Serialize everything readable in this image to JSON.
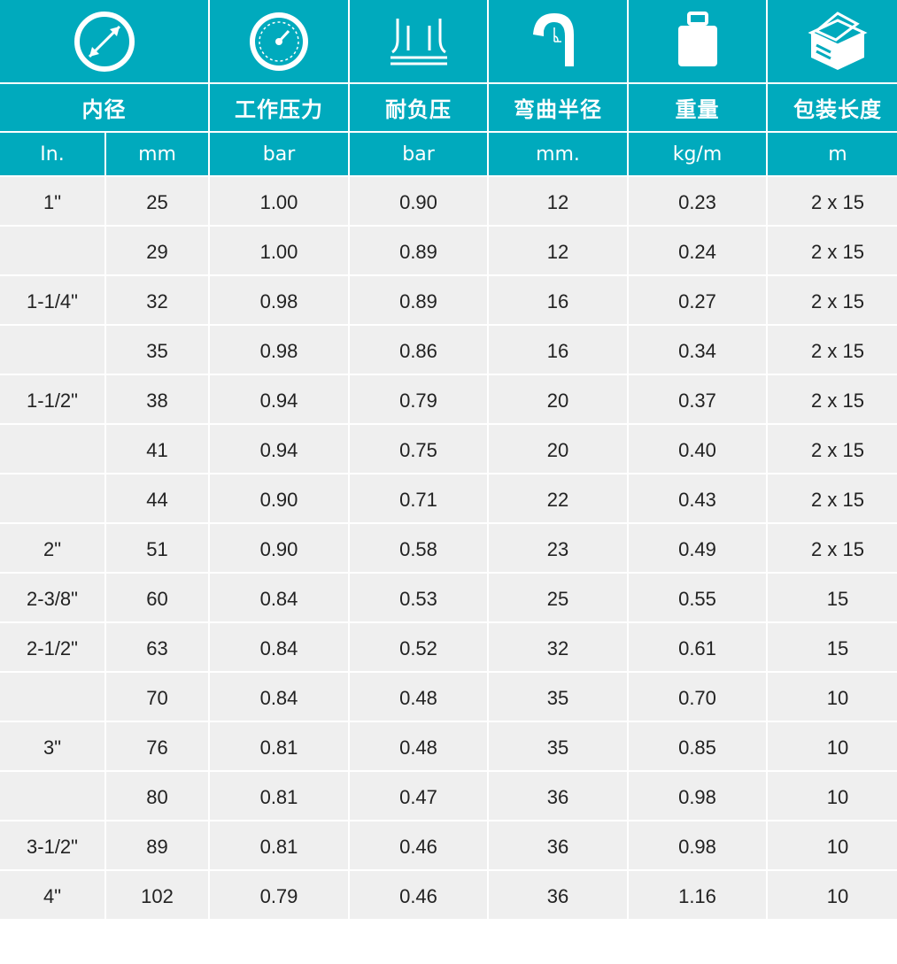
{
  "icons": [
    {
      "name": "diameter-icon"
    },
    {
      "name": "pressure-gauge-icon"
    },
    {
      "name": "vacuum-icon"
    },
    {
      "name": "bend-radius-icon"
    },
    {
      "name": "weight-icon"
    },
    {
      "name": "package-box-icon"
    }
  ],
  "titles": {
    "inner_diameter": "内径",
    "working_pressure": "工作压力",
    "vacuum": "耐负压",
    "bend_radius": "弯曲半径",
    "weight": "重量",
    "package_length": "包装长度"
  },
  "units": [
    "In.",
    "mm",
    "bar",
    "bar",
    "mm.",
    "kg/m",
    "m"
  ],
  "colors": {
    "header_bg": "#00aabd",
    "row_bg": "#efefef",
    "text": "#222222"
  },
  "rows": [
    [
      "1\"",
      "25",
      "1.00",
      "0.90",
      "12",
      "0.23",
      "2 x 15"
    ],
    [
      "",
      "29",
      "1.00",
      "0.89",
      "12",
      "0.24",
      "2 x 15"
    ],
    [
      "1-1/4\"",
      "32",
      "0.98",
      "0.89",
      "16",
      "0.27",
      "2 x 15"
    ],
    [
      "",
      "35",
      "0.98",
      "0.86",
      "16",
      "0.34",
      "2 x 15"
    ],
    [
      "1-1/2\"",
      "38",
      "0.94",
      "0.79",
      "20",
      "0.37",
      "2 x 15"
    ],
    [
      "",
      "41",
      "0.94",
      "0.75",
      "20",
      "0.40",
      "2 x 15"
    ],
    [
      "",
      "44",
      "0.90",
      "0.71",
      "22",
      "0.43",
      "2 x 15"
    ],
    [
      "2\"",
      "51",
      "0.90",
      "0.58",
      "23",
      "0.49",
      "2 x 15"
    ],
    [
      "2-3/8\"",
      "60",
      "0.84",
      "0.53",
      "25",
      "0.55",
      "15"
    ],
    [
      "2-1/2\"",
      "63",
      "0.84",
      "0.52",
      "32",
      "0.61",
      "15"
    ],
    [
      "",
      "70",
      "0.84",
      "0.48",
      "35",
      "0.70",
      "10"
    ],
    [
      "3\"",
      "76",
      "0.81",
      "0.48",
      "35",
      "0.85",
      "10"
    ],
    [
      "",
      "80",
      "0.81",
      "0.47",
      "36",
      "0.98",
      "10"
    ],
    [
      "3-1/2\"",
      "89",
      "0.81",
      "0.46",
      "36",
      "0.98",
      "10"
    ],
    [
      "4\"",
      "102",
      "0.79",
      "0.46",
      "36",
      "1.16",
      "10"
    ]
  ]
}
